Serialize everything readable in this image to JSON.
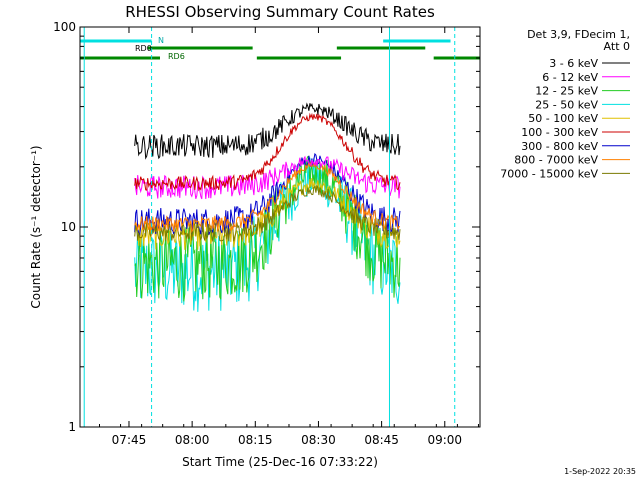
{
  "chart_data": {
    "type": "line",
    "title": "RHESSI Observing Summary Count Rates",
    "xlabel": "Start Time (25-Dec-16 07:33:22)",
    "ylabel": "Count Rate (s⁻¹ detector⁻¹)",
    "yscale": "log",
    "ylim": [
      1,
      100
    ],
    "xlim_minutes": [
      0,
      95
    ],
    "x_ticks": [
      "07:45",
      "08:00",
      "08:15",
      "08:30",
      "08:45",
      "09:00"
    ],
    "y_ticks": [
      "1",
      "10",
      "100"
    ],
    "timestamp": "1-Sep-2022 20:35",
    "legend_header": [
      "Det 3,9, FDecim 1,",
      "Att 0"
    ],
    "attenuator_labels": [
      "N",
      "RD0",
      "RD6"
    ],
    "attenuator_bars": {
      "top_cyan": [
        [
          0,
          17
        ],
        [
          72,
          88
        ]
      ],
      "green_upper": [
        [
          16,
          41
        ],
        [
          61,
          82
        ]
      ],
      "green_lower": [
        [
          0,
          19
        ],
        [
          42,
          62
        ],
        [
          84,
          95
        ]
      ]
    },
    "vlines_solid": [
      1,
      73.5
    ],
    "vlines_dashed": [
      17,
      89
    ],
    "series": [
      {
        "name": "3 - 6 keV",
        "color": "#000000",
        "start": 13,
        "end": 76,
        "base": 24,
        "peak": 38,
        "noise": 0.12
      },
      {
        "name": "6 - 12 keV",
        "color": "#ff00ff",
        "start": 13,
        "end": 76,
        "base": 15,
        "peak": 21,
        "noise": 0.12
      },
      {
        "name": "12 - 25 keV",
        "color": "#22cc22",
        "start": 13,
        "end": 76,
        "base": 5.5,
        "peak": 17,
        "noise": 0.38
      },
      {
        "name": "25 - 50 keV",
        "color": "#00e0e0",
        "start": 13,
        "end": 76,
        "base": 5,
        "peak": 16,
        "noise": 0.42
      },
      {
        "name": "50 - 100 keV",
        "color": "#e0c000",
        "start": 13,
        "end": 76,
        "base": 8.5,
        "peak": 16,
        "noise": 0.15
      },
      {
        "name": "100 - 300 keV",
        "color": "#cc0000",
        "start": 13,
        "end": 76,
        "base": 16,
        "peak": 35,
        "noise": 0.07
      },
      {
        "name": "300 - 800 keV",
        "color": "#0000cc",
        "start": 13,
        "end": 76,
        "base": 10,
        "peak": 21,
        "noise": 0.14
      },
      {
        "name": "800 - 7000 keV",
        "color": "#ff8000",
        "start": 13,
        "end": 76,
        "base": 10,
        "peak": 20,
        "noise": 0.08
      },
      {
        "name": "7000 - 15000 keV",
        "color": "#7a7a00",
        "start": 13,
        "end": 76,
        "base": 9,
        "peak": 15,
        "noise": 0.1
      }
    ]
  }
}
